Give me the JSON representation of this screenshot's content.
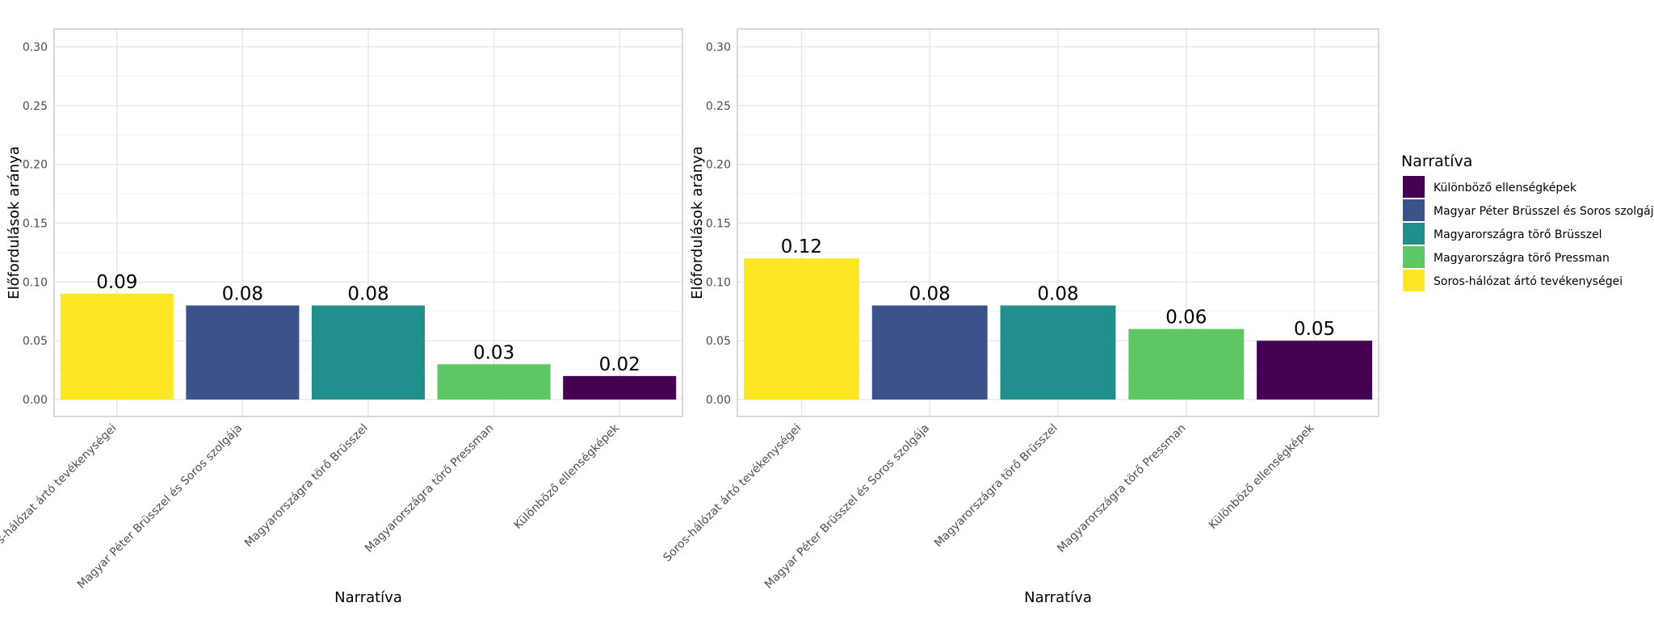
{
  "chart_data": [
    {
      "type": "bar",
      "xlabel": "Narratíva",
      "ylabel": "Előfordulások aránya",
      "ylim": [
        0,
        0.3
      ],
      "yticks": [
        "0.00",
        "0.05",
        "0.10",
        "0.15",
        "0.20",
        "0.25",
        "0.30"
      ],
      "grid": true,
      "categories": [
        "Soros-hálózat ártó tevékenységei",
        "Magyar Péter Brüsszel és Soros szolgája",
        "Magyarországra törő Brüsszel",
        "Magyarországra törő Pressman",
        "Különböző ellenségképek"
      ],
      "values": [
        0.09,
        0.08,
        0.08,
        0.03,
        0.02
      ],
      "labels": [
        "0.09",
        "0.08",
        "0.08",
        "0.03",
        "0.02"
      ],
      "colors": [
        "#FDE725",
        "#3B528B",
        "#21908C",
        "#5DC863",
        "#440154"
      ]
    },
    {
      "type": "bar",
      "xlabel": "Narratíva",
      "ylabel": "Előfordulások aránya",
      "ylim": [
        0,
        0.3
      ],
      "yticks": [
        "0.00",
        "0.05",
        "0.10",
        "0.15",
        "0.20",
        "0.25",
        "0.30"
      ],
      "grid": true,
      "categories": [
        "Soros-hálózat ártó tevékenységei",
        "Magyar Péter Brüsszel és Soros szolgája",
        "Magyarországra törő Brüsszel",
        "Magyarországra törő Pressman",
        "Különböző ellenségképek"
      ],
      "values": [
        0.12,
        0.08,
        0.08,
        0.06,
        0.05
      ],
      "labels": [
        "0.12",
        "0.08",
        "0.08",
        "0.06",
        "0.05"
      ],
      "colors": [
        "#FDE725",
        "#3B528B",
        "#21908C",
        "#5DC863",
        "#440154"
      ]
    }
  ],
  "legend": {
    "title": "Narratíva",
    "placement": "right",
    "items": [
      {
        "label": "Különböző ellenségképek",
        "color": "#440154"
      },
      {
        "label": "Magyar Péter Brüsszel és Soros szolgája",
        "color": "#3B528B"
      },
      {
        "label": "Magyarországra törő Brüsszel",
        "color": "#21908C"
      },
      {
        "label": "Magyarországra törő Pressman",
        "color": "#5DC863"
      },
      {
        "label": "Soros-hálózat ártó tevékenységei",
        "color": "#FDE725"
      }
    ]
  }
}
